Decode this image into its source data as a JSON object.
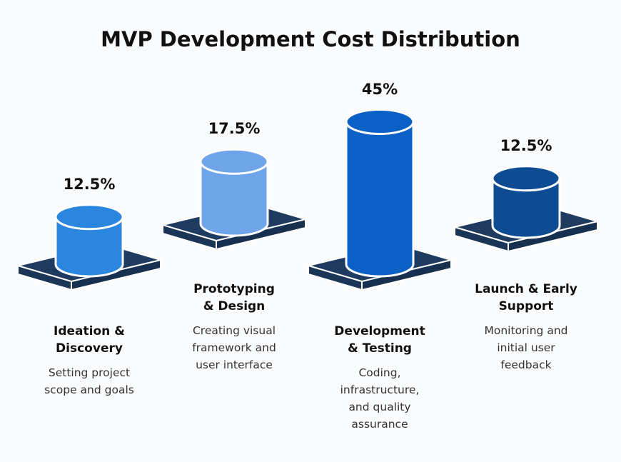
{
  "chart_data": {
    "type": "bar",
    "title": "MVP Development Cost Distribution",
    "categories": [
      "Ideation & Discovery",
      "Prototyping & Design",
      "Development & Testing",
      "Launch & Early Support"
    ],
    "values": [
      12.5,
      17.5,
      45,
      12.5
    ],
    "value_labels": [
      "12.5%",
      "17.5%",
      "45%",
      "12.5%"
    ],
    "descriptions": [
      "Setting project scope and goals",
      "Creating visual framework and user interface",
      "Coding, infrastructure, and quality assurance",
      "Monitoring and initial user feedback"
    ],
    "colors": [
      "#2b86e0",
      "#6ea4ea",
      "#0a60c5",
      "#0d4c93"
    ]
  }
}
